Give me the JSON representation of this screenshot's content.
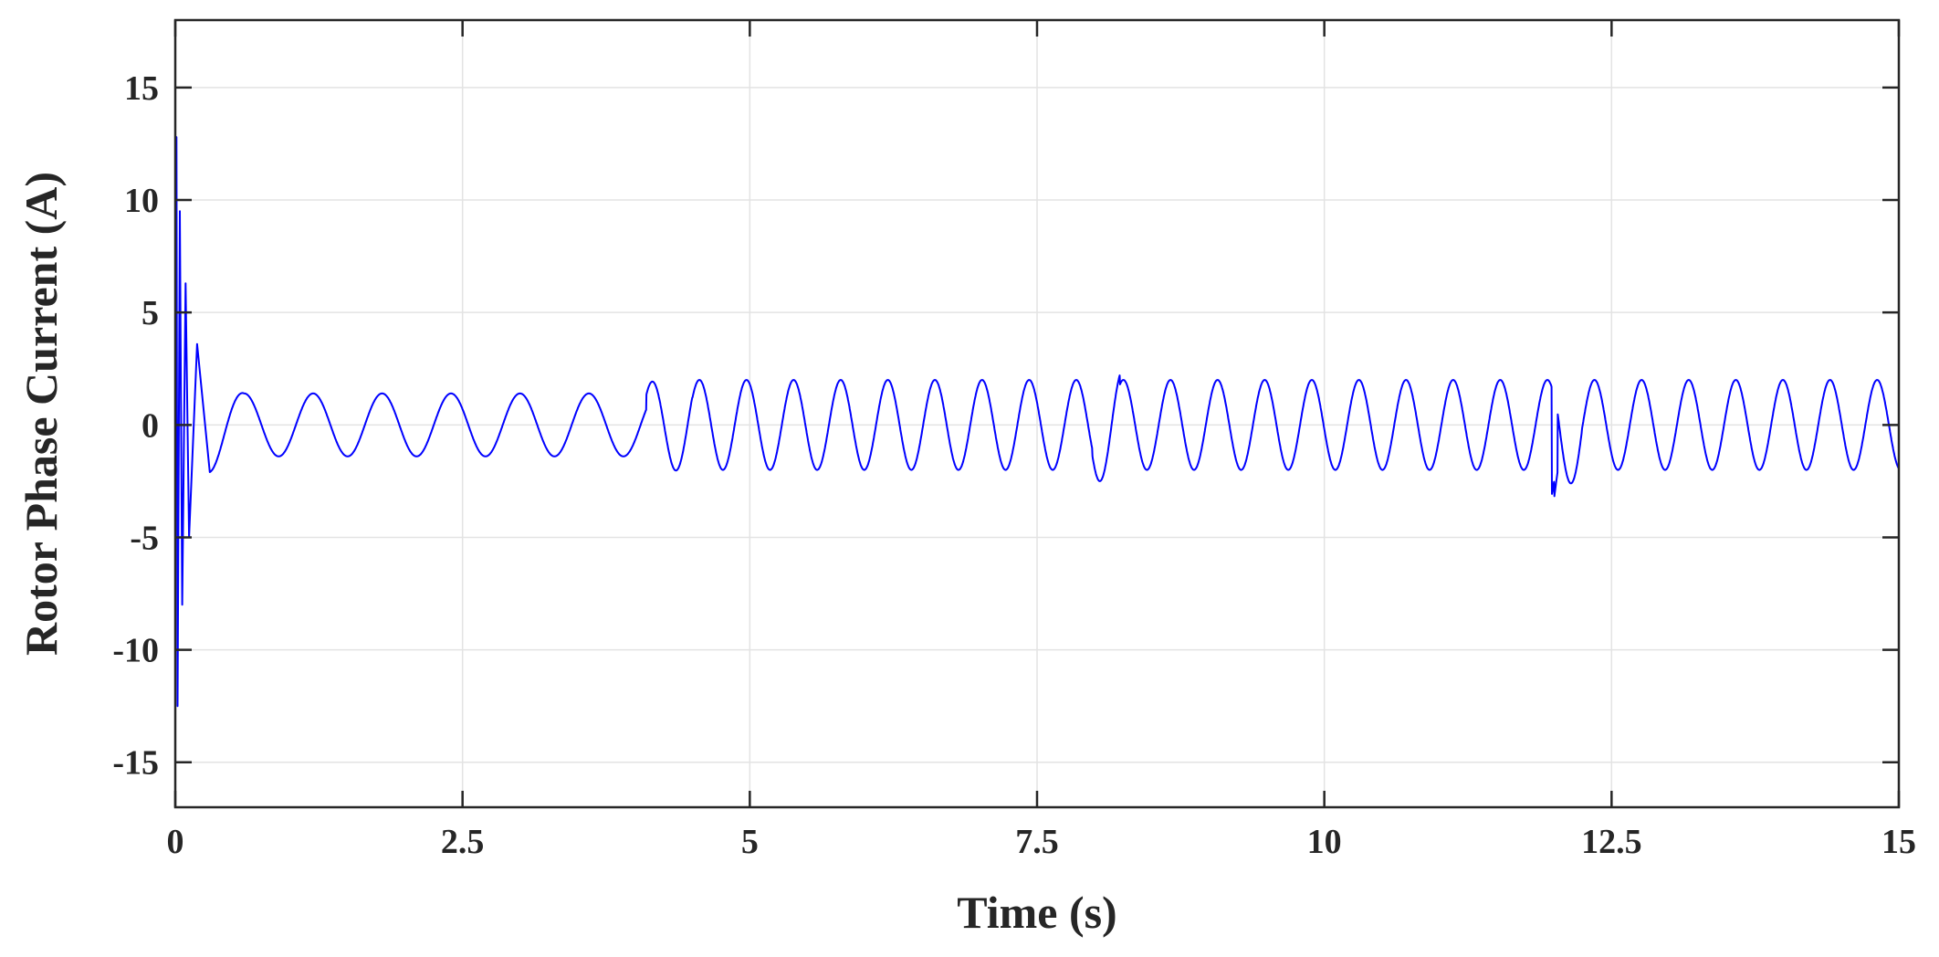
{
  "chart_data": {
    "type": "line",
    "title": "",
    "xlabel": "Time (s)",
    "ylabel": "Rotor Phase Current (A)",
    "xlim": [
      0,
      15
    ],
    "ylim": [
      -17,
      18
    ],
    "xticks": [
      0,
      2.5,
      5,
      7.5,
      10,
      12.5,
      15
    ],
    "xtick_labels": [
      "0",
      "2.5",
      "5",
      "7.5",
      "10",
      "12.5",
      "15"
    ],
    "yticks": [
      -15,
      -10,
      -5,
      0,
      5,
      10,
      15
    ],
    "ytick_labels": [
      "-15",
      "-10",
      "-5",
      "0",
      "5",
      "10",
      "15"
    ],
    "grid": true,
    "legend": "none",
    "series": [
      {
        "color": "#0000ff",
        "description_points": [
          {
            "t": 0.0,
            "i": 0
          },
          {
            "t": 0.01,
            "i": 12.8
          },
          {
            "t": 0.02,
            "i": -12.5
          },
          {
            "t": 0.04,
            "i": 9.5
          },
          {
            "t": 0.06,
            "i": -8.0
          },
          {
            "t": 0.09,
            "i": 6.3
          },
          {
            "t": 0.12,
            "i": -5.0
          },
          {
            "t": 0.19,
            "i": 3.6
          },
          {
            "t": 0.3,
            "i": -2.1
          }
        ],
        "segments": [
          {
            "t_start": 0.3,
            "t_end": 4.1,
            "period": 0.6,
            "amplitude": 1.4
          },
          {
            "t_start": 4.1,
            "t_end": 15.0,
            "period": 0.41,
            "amplitude": 2.0
          }
        ],
        "disturbances": [
          {
            "t": 8.1,
            "peak": 2.6
          },
          {
            "t": 12.0,
            "trough": -3.1
          },
          {
            "t": 12.12,
            "peak": 2.7
          }
        ]
      }
    ]
  }
}
